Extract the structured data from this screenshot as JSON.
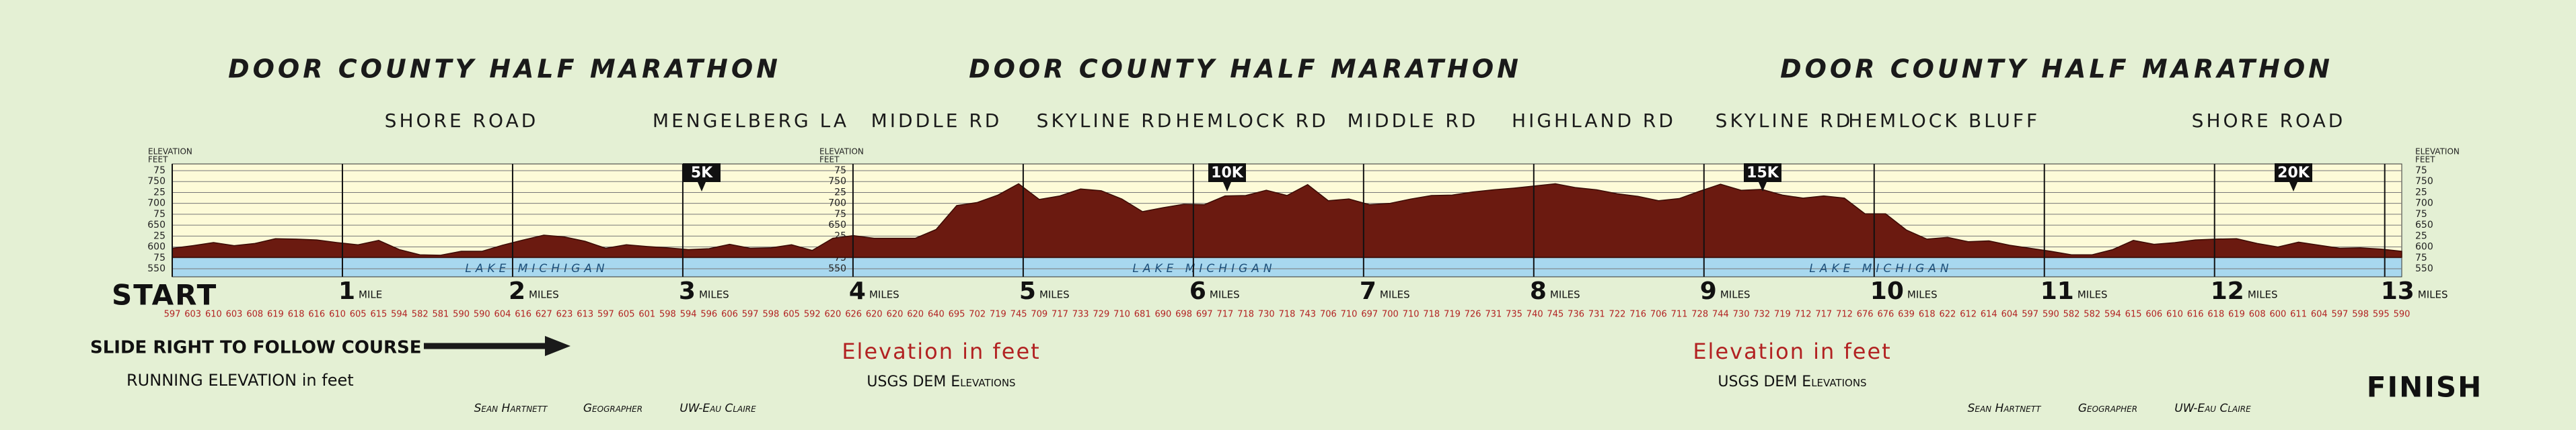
{
  "titles": [
    "DOOR COUNTY HALF MARATHON",
    "DOOR COUNTY HALF MARATHON",
    "DOOR COUNTY HALF MARATHON"
  ],
  "roads": [
    "SHORE ROAD",
    "MENGELBERG LA",
    "MIDDLE RD",
    "SKYLINE RD",
    "HEMLOCK RD",
    "MIDDLE RD",
    "HIGHLAND RD",
    "SKYLINE RD",
    "HEMLOCK",
    "BLUFF",
    "SHORE ROAD"
  ],
  "chart_data": {
    "type": "area",
    "y_axis_labels": [
      {
        "line1": "ELEVATION",
        "line2": "FEET"
      },
      {
        "line1": "ELEVATION",
        "line2": "FEET"
      },
      {
        "line1": "ELEVATION",
        "line2": "FEET"
      }
    ],
    "ylim": [
      550,
      775
    ],
    "yticks": [
      {
        "value": 775,
        "label": "75"
      },
      750,
      {
        "value": 725,
        "label": "25"
      },
      700,
      {
        "value": 675,
        "label": "75"
      },
      650,
      {
        "value": 625,
        "label": "25"
      },
      600,
      {
        "value": 575,
        "label": "75"
      },
      550
    ],
    "xlim": [
      0,
      13.1
    ],
    "xticks": [
      1,
      2,
      3,
      4,
      5,
      6,
      7,
      8,
      9,
      10,
      11,
      12,
      13
    ],
    "xtick_units": [
      "MILE",
      "MILES",
      "MILES",
      "MILES",
      "MILES",
      "MILES",
      "MILES",
      "MILES",
      "MILES",
      "MILES",
      "MILES",
      "MILES",
      "MILES"
    ],
    "start_label": "START",
    "finish_label": "FINISH",
    "markers": [
      "5K",
      "10K",
      "15K",
      "20K"
    ],
    "lake_labels": [
      "LAKE MICHIGAN",
      "LAKE MICHIGAN",
      "LAKE MICHIGAN"
    ],
    "color": "#6b1a10",
    "grid": true,
    "values": [
      597,
      603,
      610,
      603,
      608,
      619,
      618,
      616,
      610,
      605,
      615,
      594,
      582,
      581,
      590,
      590,
      604,
      616,
      627,
      623,
      613,
      597,
      605,
      601,
      598,
      594,
      596,
      606,
      597,
      598,
      605,
      592,
      620,
      626,
      620,
      620,
      620,
      640,
      695,
      702,
      719,
      745,
      709,
      717,
      733,
      729,
      710,
      681,
      690,
      698,
      697,
      717,
      718,
      730,
      718,
      743,
      706,
      710,
      697,
      700,
      710,
      718,
      719,
      726,
      731,
      735,
      740,
      745,
      736,
      731,
      722,
      716,
      706,
      711,
      728,
      744,
      730,
      732,
      719,
      712,
      717,
      712,
      676,
      676,
      639,
      618,
      622,
      612,
      614,
      604,
      597,
      590,
      582,
      582,
      594,
      615,
      606,
      610,
      616,
      618,
      619,
      608,
      600,
      611,
      604,
      597,
      598,
      595,
      590
    ]
  },
  "notes": {
    "slide": "SLIDE RIGHT TO FOLLOW COURSE",
    "running": "RUNNING ELEVATION in feet",
    "elevation_captions": [
      "Elevation in feet",
      "Elevation in feet"
    ],
    "sources": [
      "USGS DEM Elevations",
      "USGS DEM Elevations"
    ],
    "credits": [
      [
        "Sean Hartnett",
        "Geographer",
        "UW-Eau Claire"
      ],
      [
        "Sean Hartnett",
        "Geographer",
        "UW-Eau Claire"
      ]
    ]
  }
}
